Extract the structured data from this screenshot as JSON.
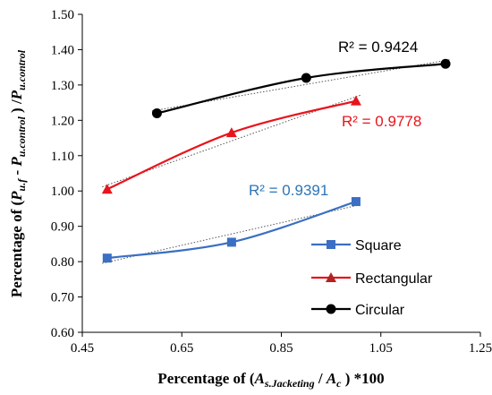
{
  "chart_data": {
    "type": "scatter",
    "xlabel": {
      "prefix": "Percentage of (",
      "a_main": "A",
      "a_sub": "s.Jacketing",
      "slash": " / ",
      "c_main": "A",
      "c_sub": "c",
      "suffix": " ) *100"
    },
    "ylabel": {
      "prefix": "Percentage of (",
      "p1_main": "P",
      "p1_sub": "u.f",
      "minus": " - ",
      "p2_main": "P",
      "p2_sub": "u.control",
      "slash": " ) /",
      "p3_main": "P",
      "p3_sub": "u.control"
    },
    "xlim": [
      0.45,
      1.25
    ],
    "ylim": [
      0.6,
      1.5
    ],
    "xticks": [
      "0.45",
      "0.65",
      "0.85",
      "1.05",
      "1.25"
    ],
    "yticks": [
      "0.60",
      "0.70",
      "0.80",
      "0.90",
      "1.00",
      "1.10",
      "1.20",
      "1.30",
      "1.40",
      "1.50"
    ],
    "grid": false,
    "legend_position": "bottom-right",
    "series": [
      {
        "name": "Square",
        "color": "#3a6fc4",
        "marker": "square",
        "x": [
          0.5,
          0.75,
          1.0
        ],
        "y": [
          0.81,
          0.855,
          0.97
        ],
        "trendline_r2": "R² = 0.9391",
        "r2_color": "#2e75b6"
      },
      {
        "name": "Rectangular",
        "color": "#e8141c",
        "marker": "triangle",
        "marker_color": "#b22222",
        "x": [
          0.5,
          0.75,
          1.0
        ],
        "y": [
          1.005,
          1.165,
          1.255
        ],
        "trendline_r2": "R² = 0.9778",
        "r2_color": "#e8141c"
      },
      {
        "name": "Circular",
        "color": "#000000",
        "marker": "circle",
        "x": [
          0.6,
          0.9,
          1.18
        ],
        "y": [
          1.22,
          1.32,
          1.36
        ],
        "trendline_r2": "R² = 0.9424",
        "r2_color": "#000000"
      }
    ]
  }
}
